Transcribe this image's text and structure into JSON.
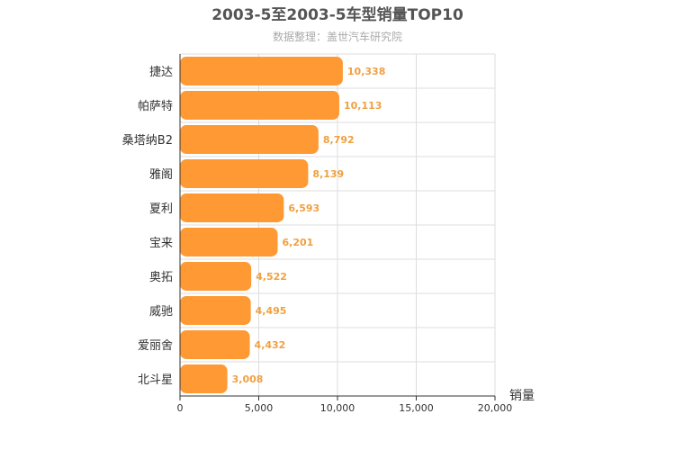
{
  "chart_data": {
    "type": "bar",
    "orientation": "horizontal",
    "title": "2003-5至2003-5车型销量TOP10",
    "subtitle": "数据整理：盖世汽车研究院",
    "xlabel": "销量",
    "categories": [
      "捷达",
      "帕萨特",
      "桑塔纳B2",
      "雅阁",
      "夏利",
      "宝来",
      "奥拓",
      "威驰",
      "爱丽舍",
      "北斗星"
    ],
    "values": [
      10338,
      10113,
      8792,
      8139,
      6593,
      6201,
      4522,
      4495,
      4432,
      3008
    ],
    "value_labels": [
      "10,338",
      "10,113",
      "8,792",
      "8,139",
      "6,593",
      "6,201",
      "4,522",
      "4,495",
      "4,432",
      "3,008"
    ],
    "xlim": [
      0,
      20000
    ],
    "ticks": [
      0,
      5000,
      10000,
      15000,
      20000
    ],
    "tick_labels": [
      "0",
      "5,000",
      "10,000",
      "15,000",
      "20,000"
    ],
    "grid": true,
    "bar_color": "#ff9933",
    "label_color": "#f0a040"
  }
}
